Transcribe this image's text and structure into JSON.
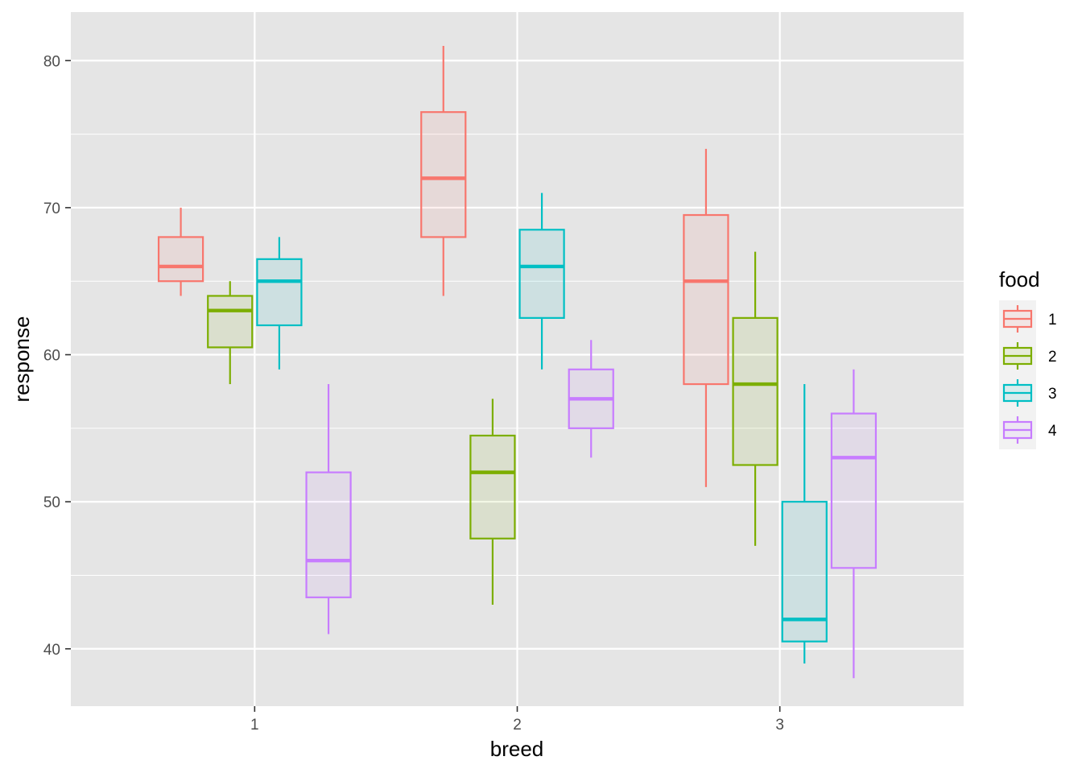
{
  "chart_data": {
    "type": "boxplot",
    "xlabel": "breed",
    "ylabel": "response",
    "legend_title": "food",
    "legend_position": "right",
    "grid": true,
    "ylim": [
      36.1,
      83.3
    ],
    "y_ticks": [
      40,
      50,
      60,
      70,
      80
    ],
    "categories": [
      "1",
      "2",
      "3"
    ],
    "series": [
      {
        "name": "1",
        "color": "#F8766D",
        "boxes": [
          {
            "whisker_low": 64,
            "q1": 65,
            "median": 66,
            "q3": 68,
            "whisker_high": 70
          },
          {
            "whisker_low": 64,
            "q1": 68,
            "median": 72,
            "q3": 76.5,
            "whisker_high": 81
          },
          {
            "whisker_low": 51,
            "q1": 58,
            "median": 65,
            "q3": 69.5,
            "whisker_high": 74
          }
        ]
      },
      {
        "name": "2",
        "color": "#7CAE00",
        "boxes": [
          {
            "whisker_low": 58,
            "q1": 60.5,
            "median": 63,
            "q3": 64,
            "whisker_high": 65
          },
          {
            "whisker_low": 43,
            "q1": 47.5,
            "median": 52,
            "q3": 54.5,
            "whisker_high": 57
          },
          {
            "whisker_low": 47,
            "q1": 52.5,
            "median": 58,
            "q3": 62.5,
            "whisker_high": 67
          }
        ]
      },
      {
        "name": "3",
        "color": "#00BFC4",
        "boxes": [
          {
            "whisker_low": 59,
            "q1": 62,
            "median": 65,
            "q3": 66.5,
            "whisker_high": 68
          },
          {
            "whisker_low": 59,
            "q1": 62.5,
            "median": 66,
            "q3": 68.5,
            "whisker_high": 71
          },
          {
            "whisker_low": 39,
            "q1": 40.5,
            "median": 42,
            "q3": 50,
            "whisker_high": 58
          }
        ]
      },
      {
        "name": "4",
        "color": "#C77CFF",
        "boxes": [
          {
            "whisker_low": 41,
            "q1": 43.5,
            "median": 46,
            "q3": 52,
            "whisker_high": 58
          },
          {
            "whisker_low": 53,
            "q1": 55,
            "median": 57,
            "q3": 59,
            "whisker_high": 61
          },
          {
            "whisker_low": 38,
            "q1": 45.5,
            "median": 53,
            "q3": 56,
            "whisker_high": 59
          }
        ]
      }
    ]
  }
}
